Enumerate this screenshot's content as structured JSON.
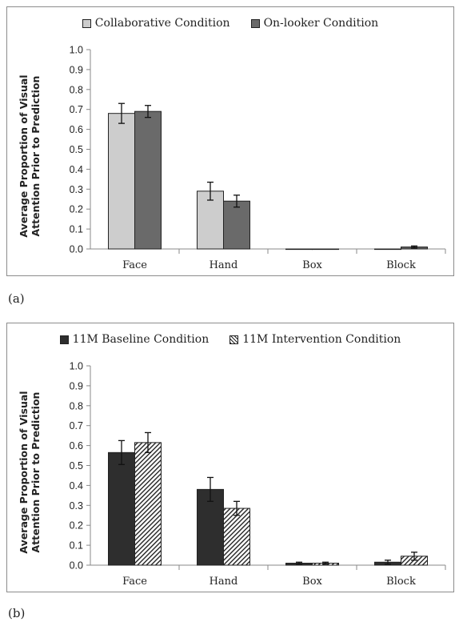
{
  "panels": [
    {
      "id": "a",
      "label": "(a)",
      "legend": [
        {
          "name": "Collaborative Condition",
          "swatch": "light"
        },
        {
          "name": "On-looker Condition",
          "swatch": "mid"
        }
      ],
      "ylabel": "Average Proportion of Visual Attention Prior to Prediction"
    },
    {
      "id": "b",
      "label": "(b)",
      "legend": [
        {
          "name": "11M Baseline Condition",
          "swatch": "dark"
        },
        {
          "name": "11M Intervention Condition",
          "swatch": "hatch"
        }
      ],
      "ylabel": "Average Proportion of Visual Attention Prior to Prediction"
    }
  ],
  "chart_data": [
    {
      "type": "bar",
      "categories": [
        "Face",
        "Hand",
        "Box",
        "Block"
      ],
      "ylabel": "Average Proportion of Visual Attention Prior to Prediction",
      "ylim": [
        0,
        1.0
      ],
      "yticks": [
        "0.0",
        "0.1",
        "0.2",
        "0.3",
        "0.4",
        "0.5",
        "0.6",
        "0.7",
        "0.8",
        "0.9",
        "1.0"
      ],
      "legend_position": "top-center",
      "series": [
        {
          "name": "Collaborative Condition",
          "color": "#cdcdcd",
          "values": [
            0.68,
            0.29,
            0.0,
            0.0
          ],
          "errors": [
            0.05,
            0.045,
            0.0,
            0.0
          ]
        },
        {
          "name": "On-looker Condition",
          "color": "#6a6a6a",
          "values": [
            0.69,
            0.24,
            0.0,
            0.01
          ],
          "errors": [
            0.03,
            0.03,
            0.0,
            0.005
          ]
        }
      ]
    },
    {
      "type": "bar",
      "categories": [
        "Face",
        "Hand",
        "Box",
        "Block"
      ],
      "ylabel": "Average Proportion of Visual Attention Prior to Prediction",
      "ylim": [
        0,
        1.0
      ],
      "yticks": [
        "0.0",
        "0.1",
        "0.2",
        "0.3",
        "0.4",
        "0.5",
        "0.6",
        "0.7",
        "0.8",
        "0.9",
        "1.0"
      ],
      "legend_position": "top-center",
      "series": [
        {
          "name": "11M Baseline Condition",
          "color": "#2e2e2e",
          "values": [
            0.565,
            0.38,
            0.01,
            0.015
          ],
          "errors": [
            0.06,
            0.06,
            0.005,
            0.01
          ]
        },
        {
          "name": "11M Intervention Condition",
          "color": "hatch",
          "values": [
            0.615,
            0.285,
            0.01,
            0.045
          ],
          "errors": [
            0.05,
            0.035,
            0.005,
            0.02
          ]
        }
      ]
    }
  ]
}
